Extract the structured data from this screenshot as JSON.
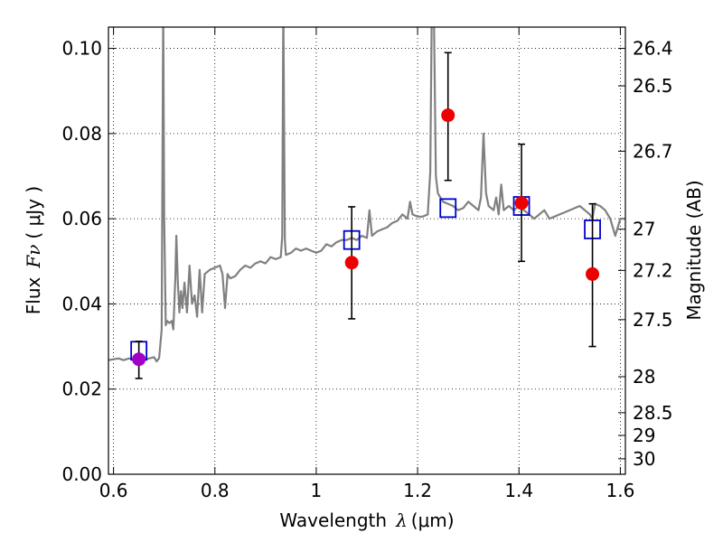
{
  "chart_data": {
    "type": "line",
    "xlabel": {
      "text": "Wavelength",
      "symbol": "λ",
      "unit": "(μm)"
    },
    "ylabel": {
      "text": "Flux",
      "symbol": "Fν",
      "unit": "( μJy )"
    },
    "y2label": "Magnitude (AB)",
    "xlim": [
      0.59,
      1.61
    ],
    "ylim": [
      0.0,
      0.105
    ],
    "grid": true,
    "x_ticks": [
      {
        "value": 0.6,
        "label": "0.6"
      },
      {
        "value": 0.8,
        "label": "0.8"
      },
      {
        "value": 1.0,
        "label": "1"
      },
      {
        "value": 1.2,
        "label": "1.2"
      },
      {
        "value": 1.4,
        "label": "1.4"
      },
      {
        "value": 1.6,
        "label": "1.6"
      }
    ],
    "y_ticks": [
      {
        "value": 0.0,
        "label": "0.00"
      },
      {
        "value": 0.02,
        "label": "0.02"
      },
      {
        "value": 0.04,
        "label": "0.04"
      },
      {
        "value": 0.06,
        "label": "0.06"
      },
      {
        "value": 0.08,
        "label": "0.08"
      },
      {
        "value": 0.1,
        "label": "0.10"
      }
    ],
    "mag_ticks": [
      {
        "mag": 26.4,
        "label": "26.4"
      },
      {
        "mag": 26.5,
        "label": "26.5"
      },
      {
        "mag": 26.7,
        "label": "26.7"
      },
      {
        "mag": 27.0,
        "label": "27"
      },
      {
        "mag": 27.2,
        "label": "27.2"
      },
      {
        "mag": 27.5,
        "label": "27.5"
      },
      {
        "mag": 28.0,
        "label": "28"
      },
      {
        "mag": 28.5,
        "label": "28.5"
      },
      {
        "mag": 29.0,
        "label": "29"
      },
      {
        "mag": 30.0,
        "label": "30"
      }
    ],
    "spectrum": {
      "color": "#808080",
      "points": [
        [
          0.59,
          0.0268
        ],
        [
          0.6,
          0.027
        ],
        [
          0.61,
          0.0272
        ],
        [
          0.62,
          0.0268
        ],
        [
          0.63,
          0.0272
        ],
        [
          0.64,
          0.027
        ],
        [
          0.65,
          0.0272
        ],
        [
          0.66,
          0.0268
        ],
        [
          0.67,
          0.0272
        ],
        [
          0.68,
          0.0275
        ],
        [
          0.685,
          0.0265
        ],
        [
          0.69,
          0.0273
        ],
        [
          0.695,
          0.034
        ],
        [
          0.698,
          0.11
        ],
        [
          0.7,
          0.06
        ],
        [
          0.703,
          0.035
        ],
        [
          0.706,
          0.036
        ],
        [
          0.71,
          0.0355
        ],
        [
          0.715,
          0.036
        ],
        [
          0.718,
          0.034
        ],
        [
          0.722,
          0.046
        ],
        [
          0.724,
          0.056
        ],
        [
          0.727,
          0.045
        ],
        [
          0.73,
          0.038
        ],
        [
          0.733,
          0.043
        ],
        [
          0.736,
          0.039
        ],
        [
          0.74,
          0.045
        ],
        [
          0.745,
          0.038
        ],
        [
          0.75,
          0.049
        ],
        [
          0.755,
          0.04
        ],
        [
          0.76,
          0.042
        ],
        [
          0.765,
          0.037
        ],
        [
          0.77,
          0.048
        ],
        [
          0.775,
          0.038
        ],
        [
          0.78,
          0.047
        ],
        [
          0.79,
          0.048
        ],
        [
          0.8,
          0.0485
        ],
        [
          0.81,
          0.049
        ],
        [
          0.815,
          0.047
        ],
        [
          0.82,
          0.039
        ],
        [
          0.825,
          0.047
        ],
        [
          0.83,
          0.046
        ],
        [
          0.84,
          0.0465
        ],
        [
          0.85,
          0.048
        ],
        [
          0.86,
          0.049
        ],
        [
          0.87,
          0.0485
        ],
        [
          0.88,
          0.0495
        ],
        [
          0.89,
          0.05
        ],
        [
          0.9,
          0.0495
        ],
        [
          0.91,
          0.051
        ],
        [
          0.92,
          0.0505
        ],
        [
          0.93,
          0.051
        ],
        [
          0.933,
          0.056
        ],
        [
          0.935,
          0.11
        ],
        [
          0.938,
          0.055
        ],
        [
          0.94,
          0.0515
        ],
        [
          0.95,
          0.052
        ],
        [
          0.96,
          0.053
        ],
        [
          0.97,
          0.0525
        ],
        [
          0.98,
          0.053
        ],
        [
          0.99,
          0.0525
        ],
        [
          1.0,
          0.052
        ],
        [
          1.01,
          0.0525
        ],
        [
          1.02,
          0.054
        ],
        [
          1.03,
          0.0535
        ],
        [
          1.04,
          0.0545
        ],
        [
          1.05,
          0.055
        ],
        [
          1.06,
          0.055
        ],
        [
          1.07,
          0.0555
        ],
        [
          1.08,
          0.055
        ],
        [
          1.09,
          0.056
        ],
        [
          1.1,
          0.0555
        ],
        [
          1.105,
          0.062
        ],
        [
          1.11,
          0.056
        ],
        [
          1.12,
          0.057
        ],
        [
          1.13,
          0.0575
        ],
        [
          1.14,
          0.058
        ],
        [
          1.15,
          0.059
        ],
        [
          1.16,
          0.0595
        ],
        [
          1.17,
          0.061
        ],
        [
          1.18,
          0.06
        ],
        [
          1.185,
          0.064
        ],
        [
          1.19,
          0.061
        ],
        [
          1.2,
          0.0605
        ],
        [
          1.21,
          0.0605
        ],
        [
          1.22,
          0.061
        ],
        [
          1.225,
          0.071
        ],
        [
          1.228,
          0.11
        ],
        [
          1.232,
          0.11
        ],
        [
          1.236,
          0.07
        ],
        [
          1.24,
          0.066
        ],
        [
          1.25,
          0.064
        ],
        [
          1.26,
          0.0635
        ],
        [
          1.27,
          0.063
        ],
        [
          1.28,
          0.062
        ],
        [
          1.29,
          0.0625
        ],
        [
          1.3,
          0.064
        ],
        [
          1.31,
          0.063
        ],
        [
          1.32,
          0.062
        ],
        [
          1.325,
          0.065
        ],
        [
          1.33,
          0.08
        ],
        [
          1.335,
          0.066
        ],
        [
          1.34,
          0.063
        ],
        [
          1.35,
          0.062
        ],
        [
          1.355,
          0.065
        ],
        [
          1.36,
          0.061
        ],
        [
          1.365,
          0.068
        ],
        [
          1.37,
          0.062
        ],
        [
          1.38,
          0.063
        ],
        [
          1.39,
          0.062
        ],
        [
          1.4,
          0.063
        ],
        [
          1.41,
          0.062
        ],
        [
          1.42,
          0.061
        ],
        [
          1.43,
          0.06
        ],
        [
          1.44,
          0.061
        ],
        [
          1.45,
          0.062
        ],
        [
          1.46,
          0.06
        ],
        [
          1.47,
          0.0605
        ],
        [
          1.48,
          0.061
        ],
        [
          1.49,
          0.0615
        ],
        [
          1.5,
          0.062
        ],
        [
          1.51,
          0.0625
        ],
        [
          1.52,
          0.063
        ],
        [
          1.53,
          0.062
        ],
        [
          1.54,
          0.061
        ],
        [
          1.545,
          0.06
        ],
        [
          1.55,
          0.0635
        ],
        [
          1.56,
          0.063
        ],
        [
          1.57,
          0.062
        ],
        [
          1.58,
          0.06
        ],
        [
          1.59,
          0.056
        ],
        [
          1.6,
          0.06
        ],
        [
          1.61,
          0.06
        ]
      ]
    },
    "model_photometry": {
      "marker": "square",
      "color": "#0000cc",
      "points": [
        {
          "x": 0.65,
          "y": 0.029
        },
        {
          "x": 1.07,
          "y": 0.055
        },
        {
          "x": 1.26,
          "y": 0.0625
        },
        {
          "x": 1.405,
          "y": 0.063
        },
        {
          "x": 1.545,
          "y": 0.0575
        }
      ]
    },
    "observed_photometry": {
      "marker": "circle",
      "points": [
        {
          "x": 0.65,
          "y": 0.027,
          "yerr_low": 0.0225,
          "yerr_high": 0.0312,
          "color": "#a000c8"
        },
        {
          "x": 1.07,
          "y": 0.0497,
          "yerr_low": 0.0365,
          "yerr_high": 0.0628,
          "color": "#ee0000"
        },
        {
          "x": 1.26,
          "y": 0.0843,
          "yerr_low": 0.069,
          "yerr_high": 0.099,
          "color": "#ee0000"
        },
        {
          "x": 1.405,
          "y": 0.0637,
          "yerr_low": 0.05,
          "yerr_high": 0.0775,
          "color": "#ee0000"
        },
        {
          "x": 1.545,
          "y": 0.047,
          "yerr_low": 0.03,
          "yerr_high": 0.0635,
          "color": "#ee0000"
        }
      ]
    }
  }
}
